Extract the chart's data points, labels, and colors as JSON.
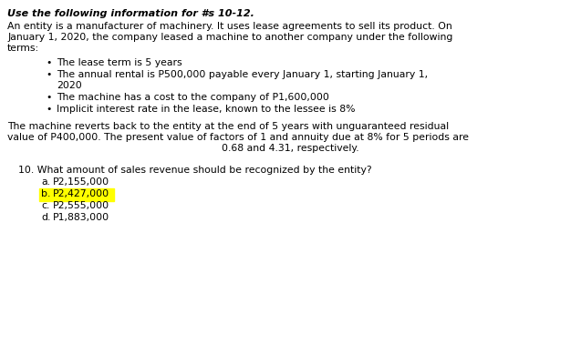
{
  "title": "Use the following information for #s 10-12.",
  "bg_color": "#ffffff",
  "text_color": "#000000",
  "highlight_color": "#ffff00",
  "font_size": 7.8,
  "title_font_size": 8.0,
  "body_lines": [
    "An entity is a manufacturer of machinery. It uses lease agreements to sell its product. On",
    "January 1, 2020, the company leased a machine to another company under the following",
    "terms:"
  ],
  "bullets": [
    {
      "text": "The lease term is 5 years",
      "wrap": false
    },
    {
      "text": "The annual rental is P500,000 payable every January 1, starting January 1,",
      "wrap": true,
      "wrap_line": "2020"
    },
    {
      "text": "The machine has a cost to the company of P1,600,000",
      "wrap": false
    },
    {
      "text": "Implicit interest rate in the lease, known to the lessee is 8%",
      "wrap": false
    }
  ],
  "para2_lines": [
    "The machine reverts back to the entity at the end of 5 years with unguaranteed residual",
    "value of P400,000. The present value of factors of 1 and annuity due at 8% for 5 periods are",
    "0.68 and 4.31, respectively."
  ],
  "question": "10. What amount of sales revenue should be recognized by the entity?",
  "choices": [
    {
      "label": "a.",
      "text": "P2,155,000",
      "highlight": false
    },
    {
      "label": "b.",
      "text": "P2,427,000",
      "highlight": true
    },
    {
      "label": "c.",
      "text": "P2,555,000",
      "highlight": false
    },
    {
      "label": "d.",
      "text": "P1,883,000",
      "highlight": false
    }
  ]
}
